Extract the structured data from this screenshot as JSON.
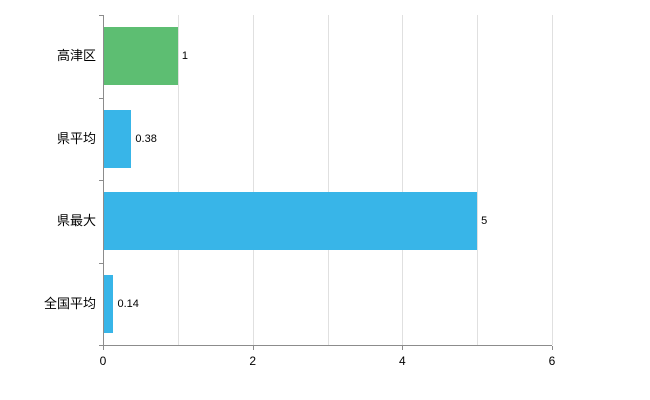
{
  "chart_data": {
    "type": "bar",
    "orientation": "horizontal",
    "title": "",
    "xlabel": "",
    "ylabel": "",
    "categories": [
      "高津区",
      "県平均",
      "県最大",
      "全国平均"
    ],
    "values": [
      1,
      0.38,
      5,
      0.14
    ],
    "value_labels": [
      "1",
      "0.38",
      "5",
      "0.14"
    ],
    "bar_colors": [
      "#5dbe72",
      "#38b5e8",
      "#38b5e8",
      "#38b5e8"
    ],
    "xlim": [
      0,
      6
    ],
    "x_tick_values": [
      0,
      2,
      4,
      6
    ],
    "x_tick_labels": [
      "0",
      "2",
      "4",
      "6"
    ],
    "gridline_step": 1,
    "grid": "vertical",
    "legend": "none"
  },
  "colors": {
    "grid": "#e0e0e0",
    "axis": "#8c8c8c",
    "background": "#ffffff"
  }
}
